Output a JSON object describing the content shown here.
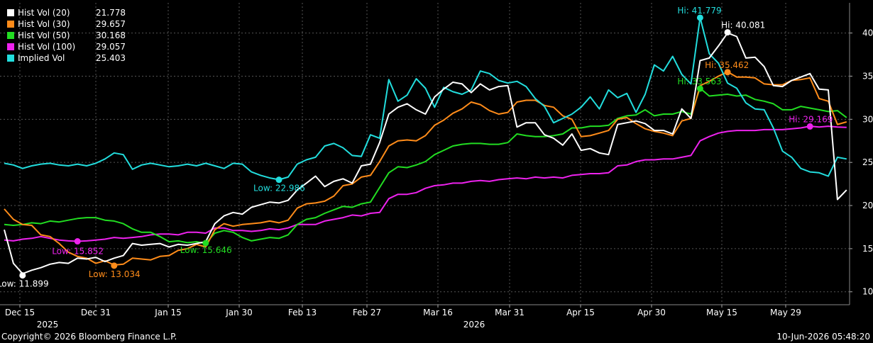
{
  "chart_data": {
    "type": "line",
    "x_labels": [
      "Dec 15",
      "Dec 31",
      "Jan 15",
      "Jan 30",
      "Feb 13",
      "Feb 27",
      "Mar 16",
      "Mar 31",
      "Apr 15",
      "Apr 30",
      "May 15",
      "May 29"
    ],
    "x_year_labels": [
      "2025",
      "2026"
    ],
    "y_ticks": [
      10,
      15,
      20,
      25,
      30,
      35,
      40
    ],
    "ylim": [
      8.5,
      43.5
    ],
    "grid": true,
    "legend_placement": "top-left",
    "series": [
      {
        "name": "Hist Vol (20)",
        "last": "21.778",
        "color": "#ffffff",
        "values": [
          17.2,
          13.3,
          12.1,
          12.5,
          12.8,
          13.2,
          13.4,
          13.3,
          13.9,
          13.8,
          14.0,
          13.5,
          13.9,
          14.2,
          15.6,
          15.4,
          15.5,
          15.6,
          15.2,
          15.5,
          15.4,
          15.6,
          15.8,
          17.9,
          18.8,
          19.2,
          19.0,
          19.8,
          20.1,
          20.4,
          20.3,
          20.6,
          21.8,
          22.6,
          23.4,
          22.2,
          22.8,
          23.1,
          22.6,
          24.6,
          24.8,
          27.3,
          30.6,
          31.4,
          31.8,
          31.1,
          30.6,
          32.6,
          33.5,
          34.3,
          34.1,
          33.1,
          34.1,
          33.4,
          33.8,
          33.9,
          29.1,
          29.6,
          29.6,
          28.2,
          27.8,
          27.0,
          28.3,
          26.4,
          26.6,
          26.1,
          25.9,
          29.4,
          29.6,
          29.8,
          29.5,
          28.7,
          28.7,
          28.3,
          31.2,
          30.1,
          36.8,
          37.1,
          38.5,
          40.0,
          39.6,
          37.1,
          37.2,
          36.1,
          33.9,
          33.8,
          34.5,
          34.9,
          35.3,
          33.5,
          33.4,
          20.7,
          21.8
        ]
      },
      {
        "name": "Hist Vol (30)",
        "last": "29.657",
        "color": "#ff8c1a",
        "values": [
          19.6,
          18.4,
          17.8,
          17.7,
          16.6,
          16.4,
          15.6,
          14.6,
          14.1,
          13.9,
          13.3,
          13.6,
          13.1,
          13.2,
          13.9,
          13.8,
          13.7,
          14.1,
          14.2,
          14.8,
          15.0,
          15.5,
          15.2,
          17.2,
          17.9,
          17.6,
          17.8,
          17.9,
          18.0,
          18.2,
          18.0,
          18.3,
          19.7,
          20.2,
          20.3,
          20.5,
          21.1,
          22.3,
          22.5,
          23.3,
          23.5,
          25.1,
          26.9,
          27.5,
          27.6,
          27.5,
          28.1,
          29.3,
          29.9,
          30.7,
          31.2,
          32.0,
          31.7,
          31.0,
          30.6,
          30.8,
          32.0,
          32.2,
          32.2,
          31.6,
          31.4,
          30.4,
          30.0,
          28.0,
          28.1,
          28.4,
          28.7,
          30.0,
          30.2,
          29.5,
          28.9,
          28.6,
          28.4,
          28.1,
          29.8,
          30.1,
          33.9,
          34.4,
          35.0,
          35.5,
          34.9,
          34.9,
          34.8,
          34.1,
          34.0,
          34.0,
          34.5,
          34.6,
          34.8,
          32.4,
          32.1,
          29.4,
          29.7
        ]
      },
      {
        "name": "Hist Vol (50)",
        "last": "30.168",
        "color": "#22dd22",
        "values": [
          17.8,
          17.7,
          17.8,
          18.0,
          17.9,
          18.2,
          18.1,
          18.3,
          18.5,
          18.6,
          18.6,
          18.3,
          18.2,
          17.9,
          17.3,
          16.9,
          16.9,
          16.4,
          15.8,
          15.9,
          15.7,
          15.8,
          15.6,
          16.8,
          17.1,
          16.9,
          16.3,
          15.9,
          16.1,
          16.3,
          16.2,
          16.6,
          17.8,
          18.4,
          18.6,
          19.1,
          19.5,
          19.9,
          19.8,
          20.2,
          20.4,
          22.1,
          23.8,
          24.5,
          24.4,
          24.7,
          25.1,
          25.9,
          26.4,
          26.9,
          27.1,
          27.2,
          27.2,
          27.1,
          27.1,
          27.3,
          28.3,
          28.1,
          28.0,
          28.0,
          28.1,
          28.3,
          29.0,
          29.0,
          29.2,
          29.2,
          29.3,
          30.1,
          30.4,
          30.5,
          31.1,
          30.4,
          30.6,
          30.6,
          30.9,
          30.6,
          33.6,
          32.7,
          32.8,
          32.9,
          32.7,
          32.8,
          32.3,
          32.1,
          31.8,
          31.1,
          31.1,
          31.5,
          31.3,
          31.1,
          30.9,
          31.0,
          30.2
        ]
      },
      {
        "name": "Hist Vol (100)",
        "last": "29.057",
        "color": "#ee22ee",
        "values": [
          16.0,
          15.9,
          16.1,
          16.2,
          16.4,
          16.2,
          16.0,
          15.9,
          15.85,
          15.9,
          16.0,
          16.1,
          16.3,
          16.2,
          16.3,
          16.4,
          16.6,
          16.7,
          16.7,
          16.6,
          16.9,
          16.9,
          16.8,
          17.4,
          17.4,
          17.1,
          17.1,
          17.0,
          17.1,
          17.3,
          17.2,
          17.4,
          17.8,
          17.8,
          17.8,
          18.2,
          18.4,
          18.6,
          18.9,
          18.8,
          19.1,
          19.2,
          20.8,
          21.3,
          21.3,
          21.5,
          22.0,
          22.3,
          22.4,
          22.6,
          22.6,
          22.8,
          22.9,
          22.8,
          23.0,
          23.1,
          23.2,
          23.1,
          23.3,
          23.2,
          23.3,
          23.2,
          23.5,
          23.6,
          23.7,
          23.7,
          23.8,
          24.6,
          24.7,
          25.1,
          25.3,
          25.3,
          25.4,
          25.4,
          25.6,
          25.8,
          27.5,
          28.0,
          28.4,
          28.6,
          28.7,
          28.7,
          28.7,
          28.8,
          28.8,
          28.8,
          28.9,
          29.0,
          29.2,
          29.1,
          29.2,
          29.1,
          29.06
        ]
      },
      {
        "name": "Implied Vol",
        "last": "25.403",
        "color": "#22dddd",
        "values": [
          24.9,
          24.7,
          24.3,
          24.6,
          24.8,
          24.9,
          24.7,
          24.6,
          24.8,
          24.6,
          24.9,
          25.4,
          26.1,
          25.9,
          24.2,
          24.7,
          24.9,
          24.7,
          24.5,
          24.6,
          24.8,
          24.6,
          24.9,
          24.6,
          24.3,
          24.9,
          24.8,
          23.9,
          23.5,
          23.2,
          23.0,
          23.3,
          24.8,
          25.3,
          25.6,
          26.9,
          27.2,
          26.7,
          25.8,
          25.7,
          28.2,
          27.8,
          34.6,
          32.1,
          32.8,
          34.7,
          33.6,
          31.4,
          33.7,
          33.2,
          32.9,
          33.4,
          35.6,
          35.3,
          34.5,
          34.2,
          34.4,
          33.8,
          32.4,
          31.5,
          29.6,
          30.1,
          30.6,
          31.4,
          32.6,
          31.2,
          33.4,
          32.5,
          33.0,
          30.8,
          32.9,
          36.3,
          35.6,
          37.3,
          35.2,
          34.1,
          41.8,
          37.6,
          36.5,
          34.2,
          33.6,
          31.9,
          31.2,
          31.1,
          29.0,
          26.3,
          25.6,
          24.3,
          23.9,
          23.8,
          23.4,
          25.6,
          25.4
        ]
      }
    ],
    "annotations": [
      {
        "text": "Low: 11.899",
        "series": 0,
        "index": 2,
        "value": 11.899,
        "color": "#ffffff",
        "dx": -36,
        "dy": 16
      },
      {
        "text": "Low: 13.034",
        "series": 1,
        "index": 12,
        "value": 13.034,
        "color": "#ff8c1a",
        "dx": -36,
        "dy": 16
      },
      {
        "text": "Low: 15.646",
        "series": 2,
        "index": 22,
        "value": 15.646,
        "color": "#22dd22",
        "dx": -36,
        "dy": 14
      },
      {
        "text": "Low: 15.852",
        "series": 3,
        "index": 8,
        "value": 15.852,
        "color": "#ee22ee",
        "dx": -36,
        "dy": 18
      },
      {
        "text": "Low: 22.986",
        "series": 4,
        "index": 30,
        "value": 22.986,
        "color": "#22dddd",
        "dx": -36,
        "dy": 16
      },
      {
        "text": "Hi: 40.081",
        "series": 0,
        "index": 79,
        "value": 40.081,
        "color": "#ffffff",
        "dx": -9,
        "dy": -6
      },
      {
        "text": "Hi: 35.462",
        "series": 1,
        "index": 79,
        "value": 35.462,
        "color": "#ff8c1a",
        "dx": -32,
        "dy": -6
      },
      {
        "text": "Hi: 33.563",
        "series": 2,
        "index": 76,
        "value": 33.563,
        "color": "#22dd22",
        "dx": -32,
        "dy": -6
      },
      {
        "text": "Hi: 29.169",
        "series": 3,
        "index": 88,
        "value": 29.169,
        "color": "#ee22ee",
        "dx": -30,
        "dy": -6
      },
      {
        "text": "Hi: 41.779",
        "series": 4,
        "index": 76,
        "value": 41.779,
        "color": "#22dddd",
        "dx": -32,
        "dy": -6
      }
    ]
  },
  "footer": {
    "copyright": "Copyright© 2026 Bloomberg Finance L.P.",
    "timestamp": "10-Jun-2026 05:48:20"
  }
}
